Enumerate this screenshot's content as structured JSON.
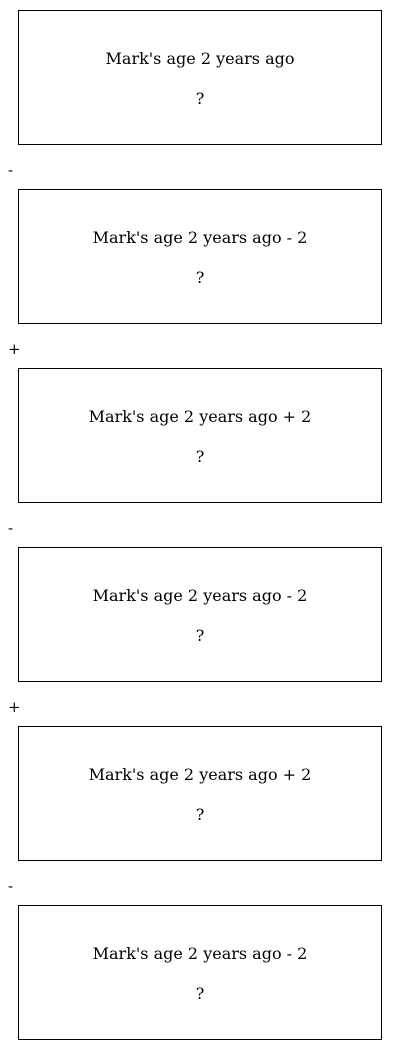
{
  "nodes": [
    {
      "label": "Mark's age 2 years ago",
      "value": "?"
    },
    {
      "label": "Mark's age 2 years ago - 2",
      "value": "?"
    },
    {
      "label": "Mark's age 2 years ago + 2",
      "value": "?"
    },
    {
      "label": "Mark's age 2 years ago - 2",
      "value": "?"
    },
    {
      "label": "Mark's age 2 years ago + 2",
      "value": "?"
    },
    {
      "label": "Mark's age 2 years ago - 2",
      "value": "?"
    }
  ],
  "operators": [
    "-",
    "+",
    "-",
    "+",
    "-"
  ]
}
